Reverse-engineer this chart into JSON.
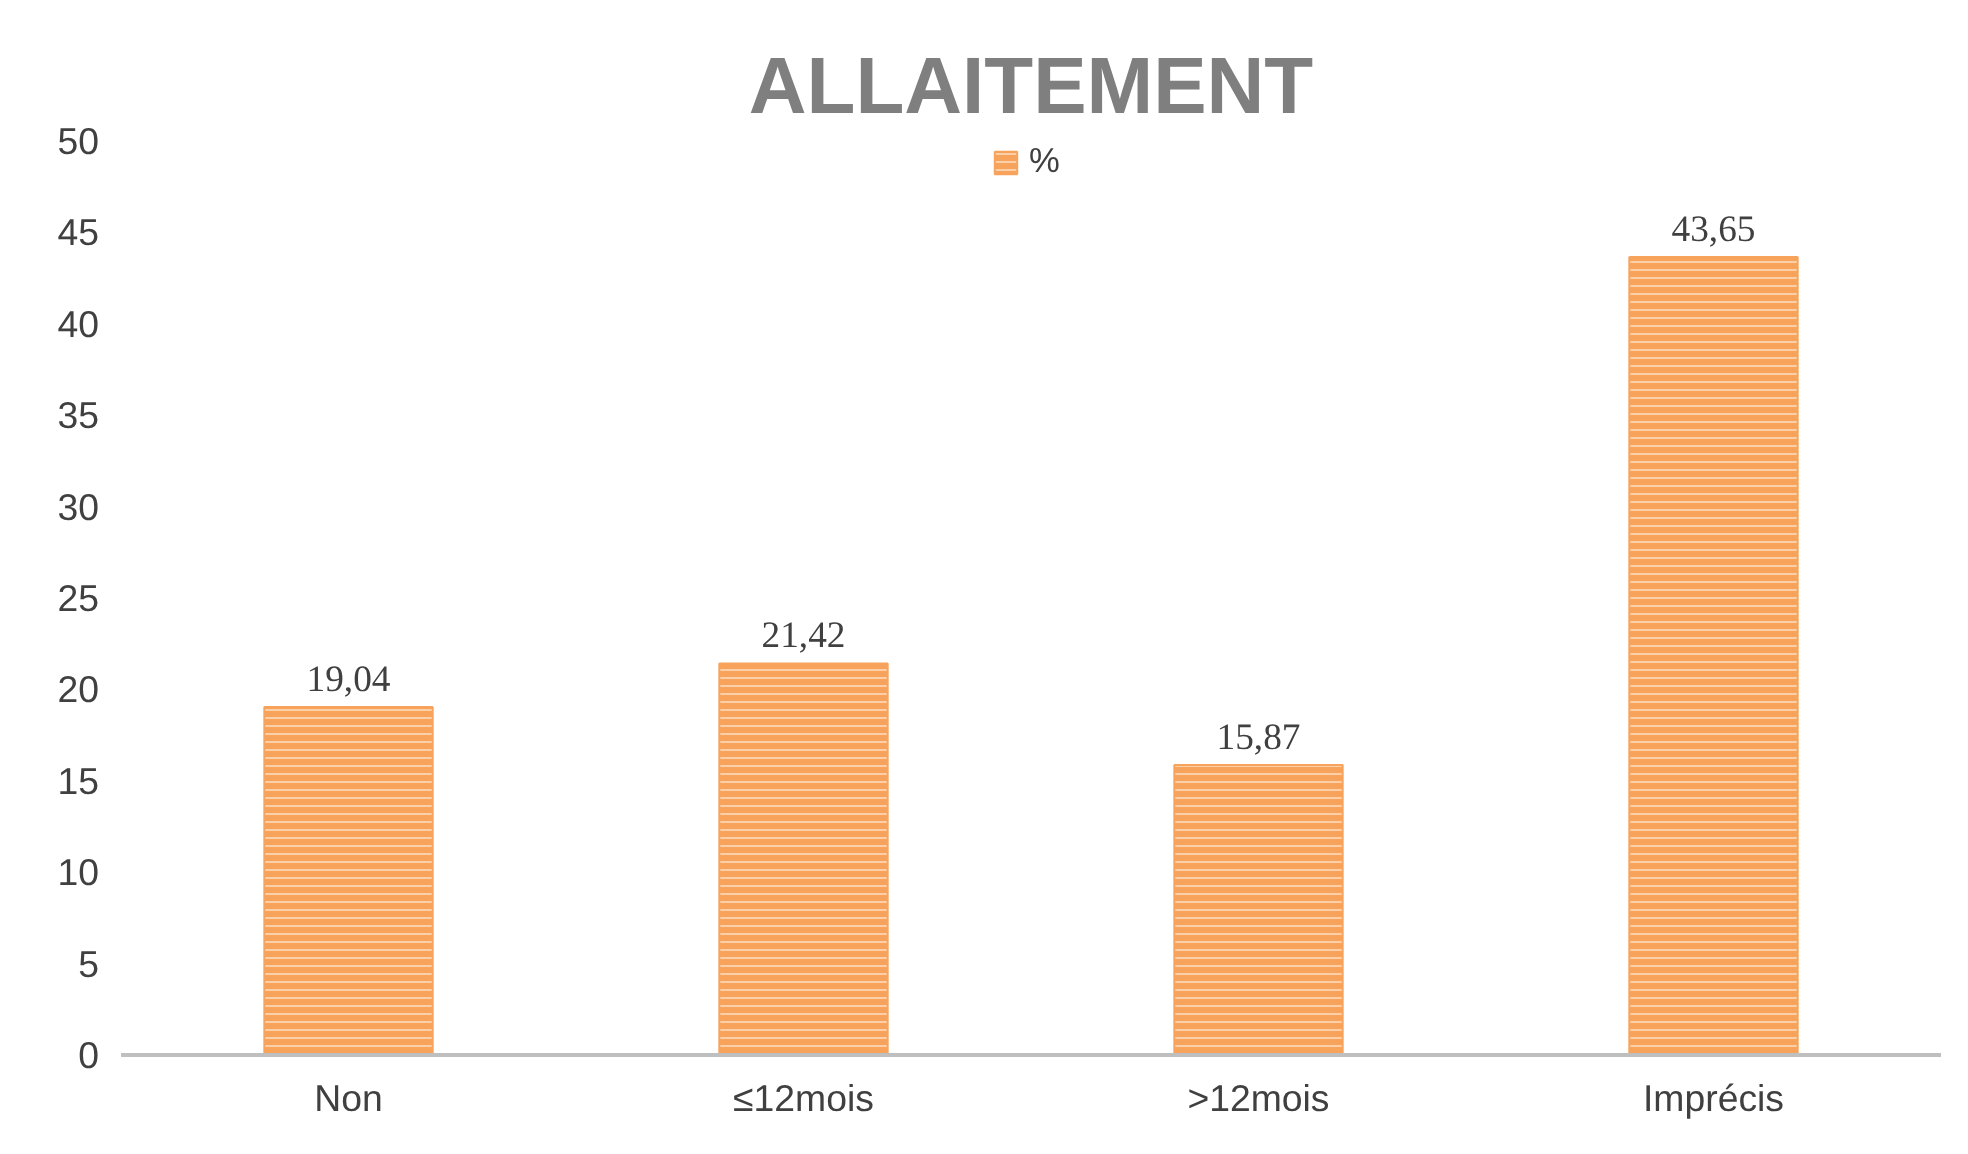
{
  "chart_data": {
    "type": "bar",
    "title": "ALLAITEMENT",
    "categories": [
      "Non",
      "≤12mois",
      ">12mois",
      "Imprécis"
    ],
    "series": [
      {
        "name": "%",
        "color": "#f7a35c",
        "values": [
          19.04,
          21.42,
          15.87,
          43.65
        ],
        "value_labels": [
          "19,04",
          "21,42",
          "15,87",
          "43,65"
        ]
      }
    ],
    "ylim": [
      0,
      50
    ],
    "yticks": [
      0,
      5,
      10,
      15,
      20,
      25,
      30,
      35,
      40,
      45,
      50
    ],
    "grid": false,
    "legend": "top"
  }
}
